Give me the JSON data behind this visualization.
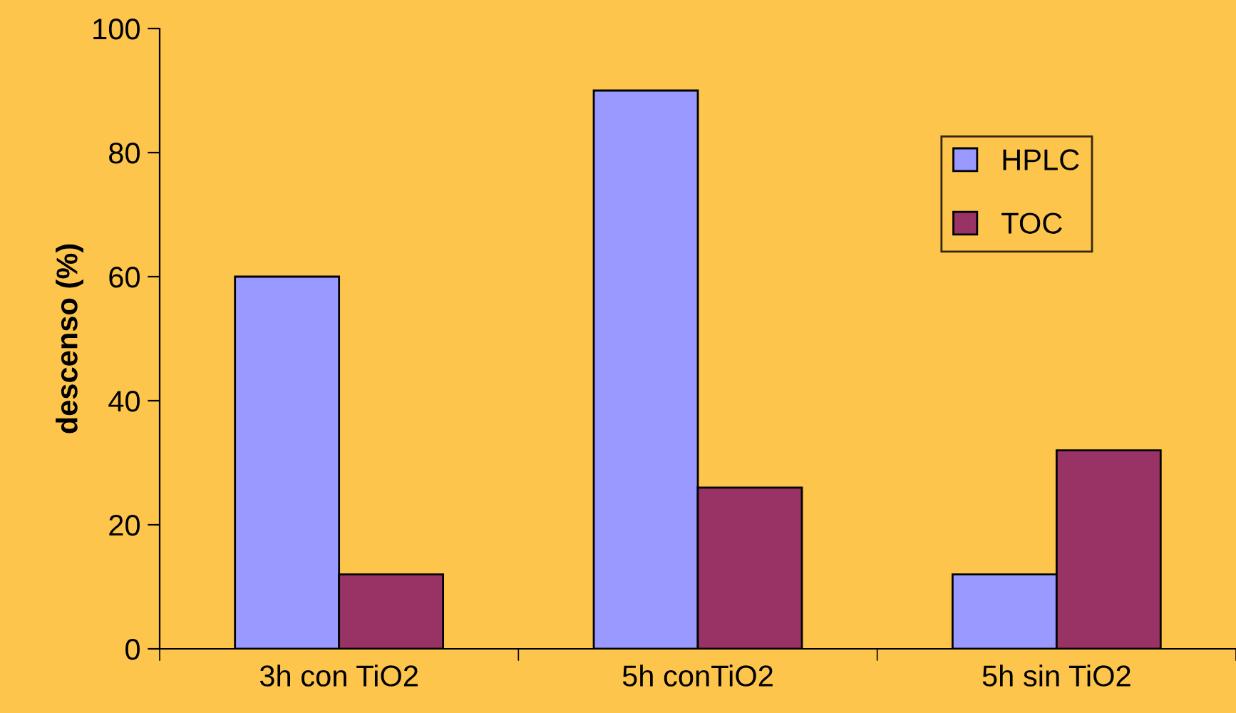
{
  "chart_data": {
    "type": "bar",
    "ylabel": "descenso (%)",
    "categories": [
      "3h con TiO2",
      "5h conTiO2",
      "5h sin TiO2"
    ],
    "series": [
      {
        "name": "HPLC",
        "color": "#9999ff",
        "values": [
          60,
          90,
          12
        ]
      },
      {
        "name": "TOC",
        "color": "#993366",
        "values": [
          12,
          26,
          32
        ]
      }
    ],
    "ylim": [
      0,
      100
    ],
    "yticks": [
      0,
      20,
      40,
      60,
      80,
      100
    ],
    "grid": false,
    "legend": "top right"
  }
}
